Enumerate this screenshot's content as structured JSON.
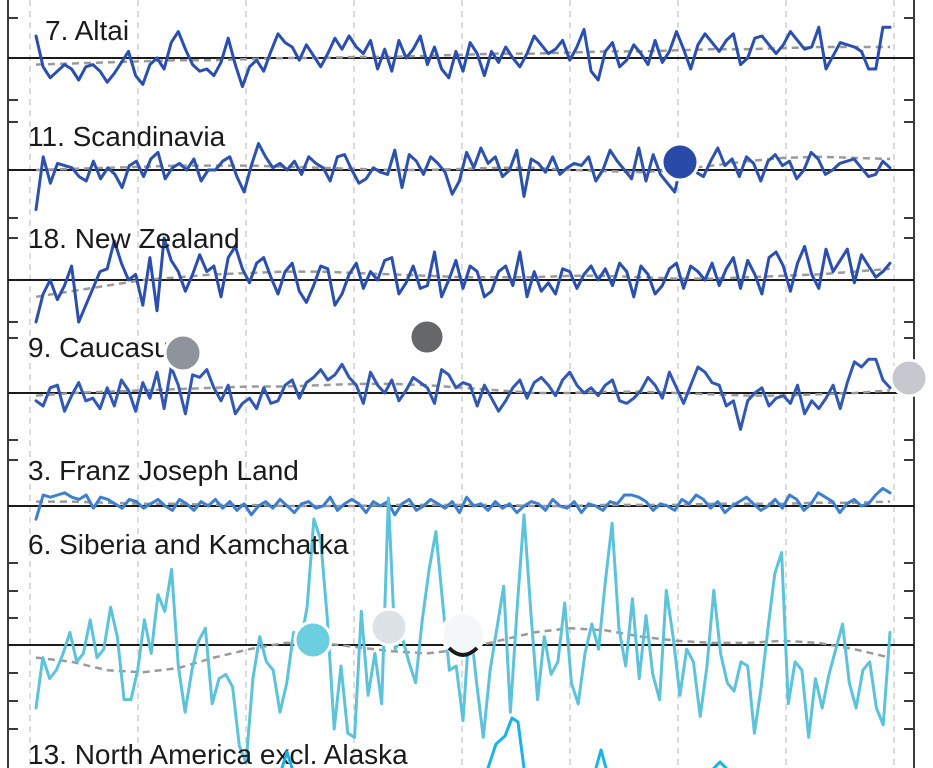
{
  "chart_data": {
    "type": "line",
    "panels": [
      {
        "label": "7. Altai",
        "color": "#2b4fb0",
        "values": [
          1.0,
          -0.4,
          -0.9,
          -0.6,
          -0.3,
          -0.5,
          -1.0,
          -0.4,
          -0.3,
          -0.6,
          -1.1,
          -0.7,
          -0.2,
          0.3,
          -0.8,
          -1.2,
          -0.3,
          0.0,
          -0.5,
          0.7,
          1.2,
          0.4,
          -0.3,
          -0.6,
          -0.5,
          -0.8,
          -0.2,
          0.9,
          -0.3,
          -1.3,
          -0.4,
          -0.1,
          -0.6,
          0.3,
          1.1,
          0.7,
          0.5,
          -0.1,
          0.6,
          0.1,
          -0.4,
          0.2,
          0.9,
          0.4,
          1.0,
          0.5,
          0.2,
          0.8,
          -0.5,
          0.4,
          -0.6,
          0.8,
          0.0,
          0.4,
          1.0,
          -0.3,
          0.5,
          -0.5,
          -0.9,
          0.3,
          -0.6,
          0.7,
          0.2,
          -0.8,
          0.3,
          -0.2,
          0.5,
          0.0,
          -0.4,
          0.2,
          1.0,
          0.6,
          0.2,
          0.4,
          0.8,
          -0.1,
          0.5,
          1.3,
          -0.6,
          -1.0,
          0.3,
          0.7,
          -0.4,
          -0.1,
          0.6,
          0.2,
          -0.3,
          0.8,
          -0.2,
          0.3,
          1.2,
          0.4,
          -0.5,
          0.6,
          1.1,
          0.7,
          0.3,
          0.8,
          1.1,
          -0.3,
          0.0,
          0.9,
          1.0,
          0.6,
          0.2,
          0.6,
          1.2,
          0.8,
          0.4,
          0.5,
          1.4,
          -0.5,
          0.1,
          0.7,
          0.6,
          0.5,
          0.3,
          -0.5,
          -0.5,
          1.4,
          1.4
        ],
        "trend": [
          -0.3,
          -0.25,
          -0.2,
          -0.15,
          -0.1,
          -0.1,
          -0.05,
          0.0,
          0.0,
          0.05,
          0.05,
          0.1,
          0.15,
          0.2,
          0.2,
          0.25,
          0.3,
          0.3,
          0.35,
          0.4,
          0.4,
          0.45,
          0.5,
          0.5,
          0.5
        ]
      },
      {
        "label": "11. Scandinavia",
        "color": "#2d52ad",
        "values": [
          -1.8,
          0.6,
          -0.6,
          0.3,
          0.2,
          0.1,
          -0.3,
          -0.5,
          0.4,
          -0.4,
          0.1,
          -0.2,
          -0.8,
          0.2,
          0.4,
          -0.3,
          0.5,
          0.8,
          -0.4,
          0.1,
          0.3,
          0.0,
          0.5,
          -0.5,
          0.0,
          0.0,
          0.4,
          0.6,
          -0.3,
          -1.0,
          0.2,
          1.2,
          0.6,
          0.1,
          0.3,
          0.0,
          0.4,
          -0.2,
          0.6,
          0.3,
          0.1,
          -0.5,
          0.6,
          0.7,
          0.0,
          -0.6,
          -0.4,
          0.1,
          -0.1,
          -0.2,
          0.9,
          -0.8,
          0.7,
          0.4,
          -0.2,
          0.6,
          0.3,
          -0.1,
          -1.1,
          -0.5,
          0.8,
          0.1,
          1.0,
          0.3,
          0.6,
          -0.3,
          0.0,
          0.9,
          -1.2,
          0.5,
          0.3,
          -0.1,
          0.6,
          -0.2,
          0.1,
          0.3,
          0.2,
          0.6,
          -0.5,
          0.0,
          0.9,
          0.4,
          0.0,
          -0.4,
          1.0,
          -0.5,
          0.7,
          -0.2,
          -0.6,
          -1.0,
          0.4,
          0.8,
          -0.1,
          -0.3,
          0.4,
          1.0,
          0.2,
          0.5,
          -0.3,
          0.6,
          0.3,
          -0.5,
          0.4,
          0.7,
          0.2,
          0.4,
          -0.4,
          0.0,
          0.8,
          0.5,
          -0.2,
          0.0,
          0.3,
          0.4,
          0.5,
          0.1,
          -0.3,
          -0.2,
          0.4,
          0.1
        ],
        "trend": [
          0.0,
          0.05,
          0.1,
          0.15,
          0.2,
          0.2,
          0.2,
          0.15,
          0.1,
          0.05,
          0.0,
          0.0,
          0.05,
          0.1,
          0.1,
          0.0,
          -0.05,
          -0.1,
          0.0,
          0.2,
          0.4,
          0.55,
          0.6,
          0.55,
          0.5
        ]
      },
      {
        "label": "18. New Zealand",
        "color": "#2a4fae",
        "values": [
          -1.5,
          -0.5,
          0.0,
          -0.7,
          -0.2,
          0.5,
          -1.5,
          -0.9,
          -0.3,
          0.3,
          0.4,
          1.4,
          0.6,
          0.0,
          0.2,
          -0.9,
          0.8,
          -1.1,
          1.5,
          0.7,
          0.3,
          -0.4,
          0.2,
          0.9,
          0.3,
          0.5,
          -0.6,
          0.8,
          1.2,
          0.4,
          -0.1,
          0.6,
          0.8,
          0.1,
          -0.5,
          0.3,
          0.6,
          -0.4,
          -0.8,
          -0.2,
          0.5,
          0.4,
          -0.9,
          -0.5,
          0.2,
          0.6,
          -0.3,
          0.3,
          0.0,
          0.7,
          0.8,
          -0.5,
          -0.1,
          0.5,
          -0.3,
          -0.2,
          1.0,
          -0.6,
          0.0,
          0.7,
          -0.3,
          0.5,
          0.3,
          -0.6,
          -0.4,
          0.3,
          0.5,
          -0.2,
          1.0,
          -0.6,
          0.3,
          -0.4,
          -0.1,
          -0.5,
          0.4,
          0.3,
          -0.3,
          0.2,
          0.5,
          0.0,
          0.4,
          -0.2,
          0.6,
          0.3,
          -0.6,
          0.5,
          0.2,
          -0.5,
          -0.2,
          0.4,
          0.6,
          -0.3,
          0.5,
          0.3,
          0.0,
          0.6,
          -0.2,
          0.4,
          0.8,
          -0.3,
          0.7,
          0.2,
          -0.5,
          0.8,
          1.0,
          0.5,
          -0.4,
          0.6,
          1.2,
          0.2,
          -0.3,
          1.1,
          0.3,
          0.7,
          1.1,
          -0.1,
          0.9,
          0.5,
          0.1,
          0.3,
          0.6
        ],
        "trend": [
          -0.6,
          -0.4,
          -0.2,
          0.0,
          0.1,
          0.2,
          0.25,
          0.3,
          0.3,
          0.25,
          0.2,
          0.15,
          0.1,
          0.1,
          0.1,
          0.15,
          0.15,
          0.1,
          0.05,
          0.05,
          0.1,
          0.15,
          0.2,
          0.3,
          0.4
        ]
      },
      {
        "label": "9. Caucasus",
        "color": "#3058b4",
        "values": [
          -0.3,
          -0.5,
          0.2,
          0.3,
          -0.7,
          -0.1,
          0.4,
          -0.3,
          -0.2,
          -0.6,
          0.2,
          -0.5,
          0.5,
          0.1,
          -0.7,
          0.4,
          -0.2,
          0.8,
          -0.6,
          1.0,
          0.3,
          -0.8,
          0.7,
          0.6,
          0.9,
          0.2,
          -0.3,
          0.3,
          -0.8,
          -0.4,
          -0.2,
          -0.6,
          0.2,
          -0.4,
          -0.3,
          0.3,
          0.5,
          -0.2,
          0.4,
          0.6,
          0.9,
          0.5,
          0.7,
          1.1,
          0.6,
          0.3,
          -0.4,
          0.8,
          0.3,
          0.0,
          0.5,
          -0.3,
          0.1,
          0.6,
          0.4,
          0.2,
          -0.4,
          0.9,
          0.7,
          0.2,
          0.4,
          0.3,
          -0.5,
          0.3,
          -0.2,
          -0.7,
          -0.3,
          0.2,
          0.5,
          -0.2,
          0.4,
          0.6,
          0.3,
          -0.1,
          0.5,
          0.8,
          0.3,
          0.0,
          0.2,
          -0.1,
          0.3,
          0.5,
          -0.3,
          -0.4,
          -0.2,
          0.1,
          0.6,
          0.3,
          -0.2,
          0.8,
          0.2,
          -0.4,
          0.3,
          1.0,
          0.8,
          0.4,
          0.3,
          -0.5,
          -0.3,
          -1.4,
          -0.3,
          0.0,
          0.2,
          -0.5,
          -0.2,
          -0.1,
          -0.4,
          0.3,
          -0.8,
          -0.3,
          -0.6,
          -0.2,
          0.3,
          -0.6,
          0.4,
          1.2,
          1.0,
          1.3,
          1.3,
          0.5,
          0.2
        ],
        "trend": [
          -0.1,
          0.0,
          0.05,
          0.1,
          0.15,
          0.2,
          0.25,
          0.25,
          0.3,
          0.35,
          0.35,
          0.3,
          0.2,
          0.1,
          0.0,
          0.0,
          0.05,
          0.05,
          0.0,
          -0.05,
          -0.1,
          -0.1,
          -0.05,
          0.0,
          0.1
        ]
      },
      {
        "label": "3. Franz Joseph Land",
        "color": "#3e7fd0",
        "values": [
          -0.6,
          0.5,
          0.4,
          0.5,
          0.6,
          0.4,
          0.3,
          0.5,
          -0.1,
          0.4,
          0.3,
          0.1,
          -0.1,
          0.3,
          0.2,
          -0.1,
          0.1,
          0.3,
          0.0,
          -0.2,
          0.3,
          0.1,
          -0.2,
          0.2,
          0.0,
          0.3,
          -0.1,
          0.2,
          -0.2,
          0.1,
          -0.4,
          0.0,
          0.2,
          -0.1,
          0.3,
          0.0,
          -0.3,
          0.1,
          0.2,
          -0.1,
          0.0,
          0.4,
          -0.2,
          0.1,
          0.3,
          0.1,
          -0.3,
          0.2,
          0.0,
          0.2,
          -0.4,
          0.1,
          0.3,
          -0.2,
          0.0,
          0.3,
          0.1,
          -0.1,
          0.2,
          -0.3,
          0.4,
          0.0,
          0.1,
          -0.2,
          0.2,
          -0.1,
          0.1,
          -0.3,
          0.0,
          0.2,
          0.1,
          -0.2,
          0.3,
          0.0,
          -0.1,
          0.2,
          -0.3,
          0.1,
          0.0,
          -0.2,
          0.2,
          0.1,
          0.5,
          0.5,
          0.4,
          0.2,
          -0.2,
          0.1,
          0.0,
          -0.2,
          0.3,
          0.1,
          0.5,
          0.3,
          -0.1,
          0.2,
          -0.3,
          0.0,
          0.2,
          0.4,
          0.1,
          -0.2,
          0.0,
          0.3,
          -0.1,
          0.5,
          0.3,
          -0.2,
          0.1,
          0.6,
          0.4,
          0.2,
          -0.3,
          0.1,
          0.3,
          0.0,
          0.1,
          0.5,
          0.8,
          0.6
        ],
        "trend": [
          0.2,
          0.2,
          0.15,
          0.1,
          0.1,
          0.05,
          0.05,
          0.0,
          0.0,
          0.0,
          0.05,
          0.05,
          0.05,
          0.05,
          0.0,
          0.0,
          0.05,
          0.05,
          0.05,
          0.1,
          0.1,
          0.1,
          0.15,
          0.15,
          0.2
        ]
      },
      {
        "label": "6. Siberia and Kamchatka",
        "color": "#5cc3db",
        "values": [
          -1.5,
          -0.3,
          -0.8,
          -0.6,
          -0.2,
          0.3,
          -0.4,
          -0.2,
          0.6,
          -0.3,
          -0.1,
          0.9,
          0.2,
          -1.3,
          -1.3,
          -0.6,
          0.6,
          -0.2,
          1.2,
          0.8,
          1.8,
          -0.5,
          -1.6,
          -0.6,
          0.1,
          0.4,
          -1.4,
          -0.8,
          -0.7,
          -1.0,
          -2.4,
          -2.8,
          -0.8,
          0.2,
          -0.4,
          -0.6,
          -1.6,
          -0.9,
          0.3,
          0.0,
          0.9,
          3.0,
          2.5,
          0.6,
          -2.0,
          -0.5,
          -2.1,
          -2.2,
          0.8,
          -1.2,
          -0.2,
          -1.4,
          3.5,
          -0.1,
          0.2,
          -0.4,
          -0.9,
          0.6,
          1.8,
          2.7,
          1.0,
          -0.6,
          -0.5,
          -1.8,
          0.6,
          -0.9,
          -2.2,
          -0.6,
          0.4,
          1.4,
          -1.6,
          0.9,
          3.1,
          0.8,
          -1.3,
          0.2,
          -0.7,
          -0.4,
          1.0,
          -0.9,
          -1.4,
          -0.2,
          0.5,
          -0.1,
          1.5,
          2.9,
          0.4,
          -0.5,
          1.1,
          -0.8,
          0.7,
          -0.7,
          -1.3,
          1.3,
          0.2,
          -1.2,
          -0.1,
          -0.4,
          -1.7,
          -0.5,
          1.3,
          -0.2,
          -0.9,
          -1.1,
          -0.4,
          -0.5,
          -2.1,
          -1.0,
          0.4,
          1.7,
          2.2,
          -1.4,
          -0.4,
          -0.6,
          -2.2,
          -0.8,
          -1.5,
          -0.7,
          -0.1,
          0.5,
          -0.9,
          -1.5,
          -0.6,
          -0.4,
          -1.5,
          -1.9,
          0.3
        ],
        "trend": [
          -0.3,
          -0.4,
          -0.6,
          -0.65,
          -0.55,
          -0.3,
          -0.1,
          0.05,
          0.05,
          -0.05,
          -0.15,
          -0.2,
          -0.1,
          0.1,
          0.3,
          0.4,
          0.35,
          0.2,
          0.1,
          0.05,
          0.05,
          0.1,
          0.05,
          -0.1,
          -0.3
        ]
      }
    ],
    "partial_label": "13. North America excl. Alaska",
    "partial_color": "#1ab3e6",
    "grid": true,
    "markers": [
      {
        "series": "11. Scandinavia",
        "color": "#2a4aa8"
      },
      {
        "series": "9. Caucasus",
        "color": "#8f939b"
      },
      {
        "series": "9. Caucasus",
        "color": "#656769"
      },
      {
        "series": "9. Caucasus",
        "color": "#c5c8ce"
      },
      {
        "series": "6. Siberia and Kamchatka",
        "color": "#6ccfe0"
      },
      {
        "series": "6. Siberia and Kamchatka",
        "color": "#dde2e7"
      },
      {
        "series": "6. Siberia and Kamchatka",
        "color": "#f4f7f9"
      }
    ]
  }
}
